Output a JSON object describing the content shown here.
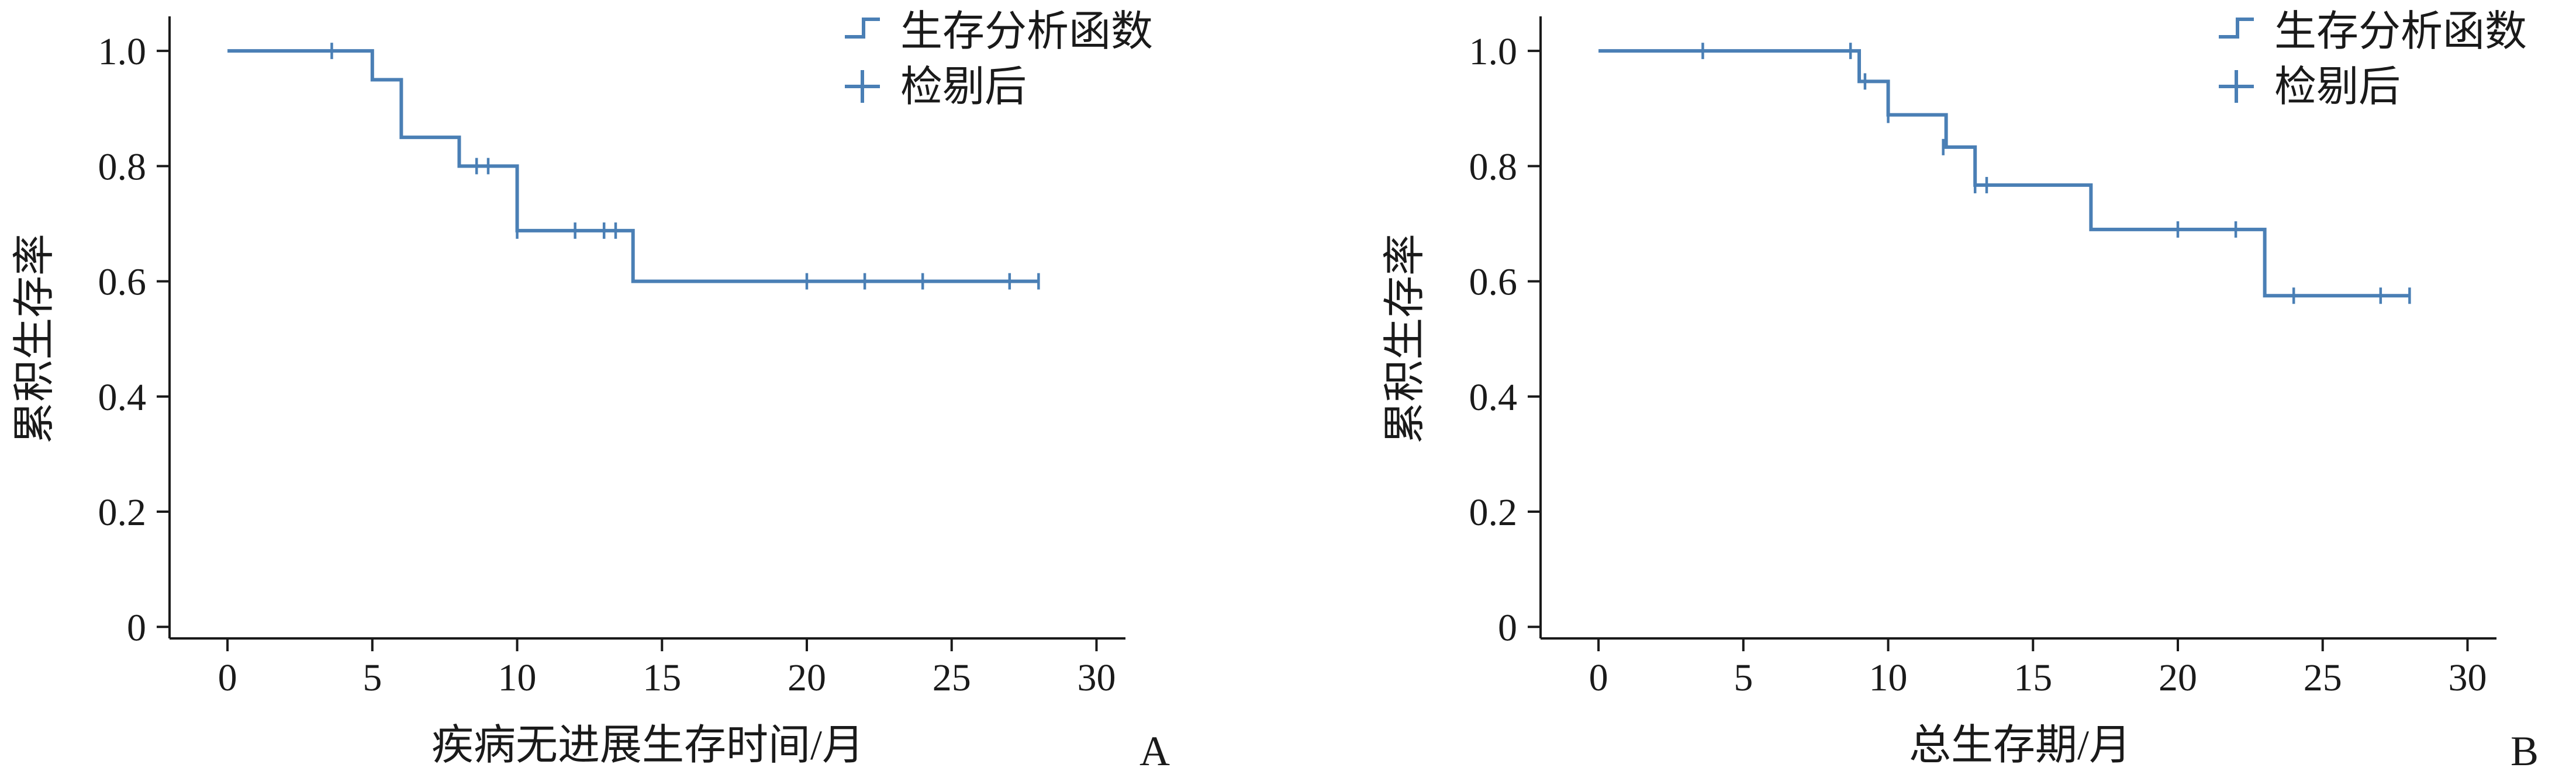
{
  "chart_data": [
    {
      "type": "line",
      "subtype": "kaplan-meier-step",
      "panel_label": "A",
      "xlabel": "疾病无进展生存时间/月",
      "ylabel": "累积生存率",
      "xlim": [
        -2,
        31
      ],
      "ylim": [
        -0.02,
        1.06
      ],
      "x_ticks": [
        0,
        5,
        10,
        15,
        20,
        25,
        30
      ],
      "y_ticks": [
        0,
        0.2,
        0.4,
        0.6,
        0.8,
        1.0
      ],
      "y_tick_labels": [
        "0",
        "0.2",
        "0.4",
        "0.6",
        "0.8",
        "1.0"
      ],
      "grid": false,
      "legend_position": "top-right",
      "legend": [
        "生存分析函数",
        "检剔后"
      ],
      "series": [
        {
          "name": "生存分析函数",
          "color": "#4a7fb5",
          "steps": [
            [
              0,
              1.0
            ],
            [
              5,
              0.95
            ],
            [
              6,
              0.85
            ],
            [
              8,
              0.8
            ],
            [
              10,
              0.688
            ],
            [
              14,
              0.6
            ],
            [
              28,
              0.6
            ]
          ],
          "censored": [
            [
              3.6,
              1.0
            ],
            [
              8.6,
              0.8
            ],
            [
              9.0,
              0.8
            ],
            [
              10.0,
              0.688
            ],
            [
              12,
              0.688
            ],
            [
              13,
              0.688
            ],
            [
              13.4,
              0.688
            ],
            [
              20,
              0.6
            ],
            [
              22,
              0.6
            ],
            [
              24,
              0.6
            ],
            [
              27,
              0.6
            ],
            [
              28,
              0.6
            ]
          ]
        }
      ]
    },
    {
      "type": "line",
      "subtype": "kaplan-meier-step",
      "panel_label": "B",
      "xlabel": "总生存期/月",
      "ylabel": "累积生存率",
      "xlim": [
        -2,
        31
      ],
      "ylim": [
        -0.02,
        1.06
      ],
      "x_ticks": [
        0,
        5,
        10,
        15,
        20,
        25,
        30
      ],
      "y_ticks": [
        0,
        0.2,
        0.4,
        0.6,
        0.8,
        1.0
      ],
      "y_tick_labels": [
        "0",
        "0.2",
        "0.4",
        "0.6",
        "0.8",
        "1.0"
      ],
      "grid": false,
      "legend_position": "top-right",
      "legend": [
        "生存分析函数",
        "检剔后"
      ],
      "series": [
        {
          "name": "生存分析函数",
          "color": "#4a7fb5",
          "steps": [
            [
              0,
              1.0
            ],
            [
              9,
              0.947
            ],
            [
              10,
              0.889
            ],
            [
              12,
              0.833
            ],
            [
              13,
              0.767
            ],
            [
              17,
              0.69
            ],
            [
              23,
              0.575
            ],
            [
              28,
              0.575
            ]
          ],
          "censored": [
            [
              3.6,
              1.0
            ],
            [
              8.7,
              1.0
            ],
            [
              9.2,
              0.947
            ],
            [
              10.0,
              0.889
            ],
            [
              11.9,
              0.833
            ],
            [
              13.0,
              0.767
            ],
            [
              13.4,
              0.767
            ],
            [
              20,
              0.69
            ],
            [
              22,
              0.69
            ],
            [
              24,
              0.575
            ],
            [
              27,
              0.575
            ],
            [
              28,
              0.575
            ]
          ]
        }
      ]
    }
  ]
}
